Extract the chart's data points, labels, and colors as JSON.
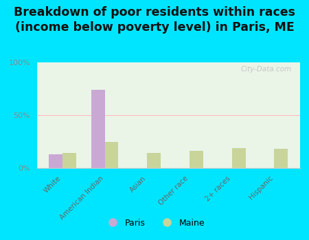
{
  "title": "Breakdown of poor residents within races\n(income below poverty level) in Paris, ME",
  "categories": [
    "White",
    "American Indian",
    "Asian",
    "Other race",
    "2+ races",
    "Hispanic"
  ],
  "paris_values": [
    13,
    74,
    0,
    0,
    0,
    0
  ],
  "maine_values": [
    14,
    25,
    14,
    16,
    19,
    18
  ],
  "paris_color": "#c9a8d4",
  "maine_color": "#c8d49a",
  "background_color": "#eaf5e8",
  "outer_background": "#00e5ff",
  "ylim": [
    0,
    100
  ],
  "yticks": [
    0,
    50,
    100
  ],
  "ytick_labels": [
    "0%",
    "50%",
    "100%"
  ],
  "title_fontsize": 12.5,
  "legend_labels": [
    "Paris",
    "Maine"
  ],
  "watermark": "City-Data.com"
}
